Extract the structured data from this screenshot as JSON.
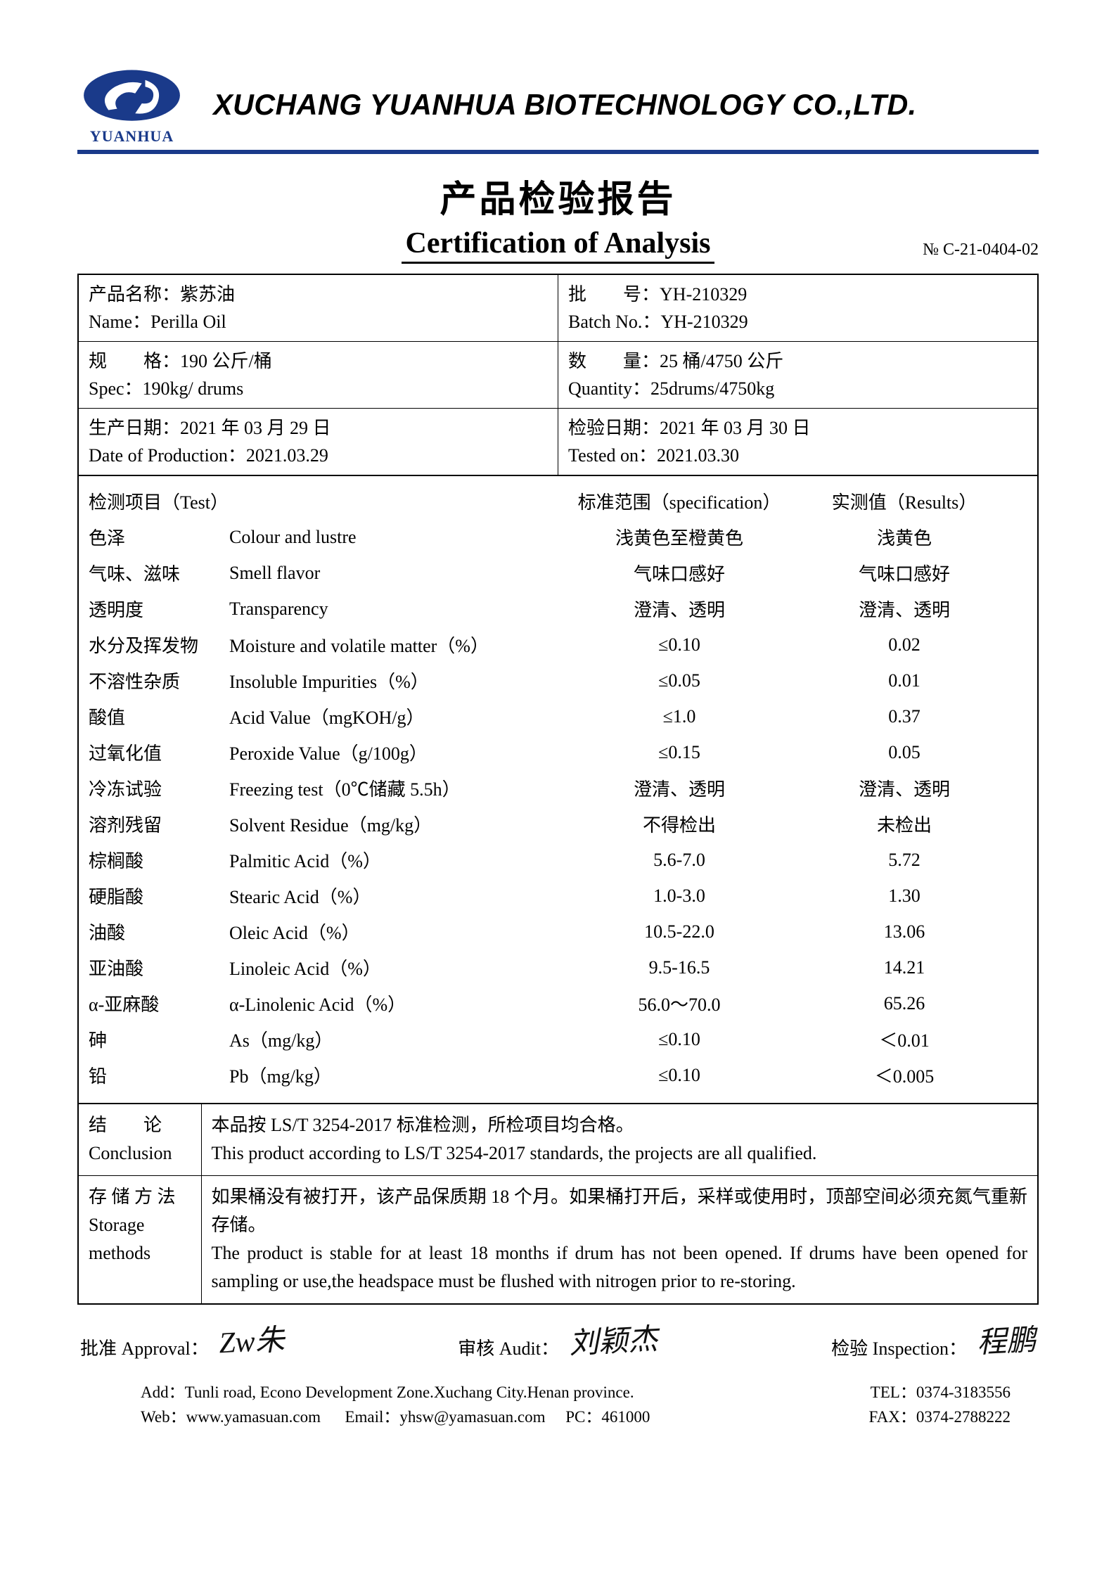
{
  "company": {
    "logo_text": "YUANHUA",
    "name_en": "XUCHANG YUANHUA BIOTECHNOLOGY CO.,LTD.",
    "logo_color": "#1a3a8a"
  },
  "titles": {
    "cn": "产品检验报告",
    "en": "Certification of Analysis",
    "doc_no_label": "№",
    "doc_no": "C-21-0404-02"
  },
  "meta": {
    "name_cn_label": "产品名称：",
    "name_cn": "紫苏油",
    "name_en_label": "Name：",
    "name_en": "Perilla Oil",
    "batch_cn_label": "批　　号：",
    "batch_cn": "YH-210329",
    "batch_en_label": "Batch No.：",
    "batch_en": "YH-210329",
    "spec_cn_label": "规　　格：",
    "spec_cn": "190 公斤/桶",
    "spec_en_label": "Spec：",
    "spec_en": "190kg/ drums",
    "qty_cn_label": "数　　量：",
    "qty_cn": "25 桶/4750 公斤",
    "qty_en_label": "Quantity：",
    "qty_en": "25drums/4750kg",
    "prod_cn_label": "生产日期：",
    "prod_cn": "2021 年 03 月 29 日",
    "prod_en_label": "Date of Production：",
    "prod_en": "2021.03.29",
    "tested_cn_label": "检验日期：",
    "tested_cn": "2021 年 03 月 30 日",
    "tested_en_label": "Tested on：",
    "tested_en": "2021.03.30"
  },
  "tests_header": {
    "c1": "检测项目（Test）",
    "c3": "标准范围（specification）",
    "c4": "实测值（Results）"
  },
  "tests": [
    {
      "cn": "色泽",
      "en": "Colour and lustre",
      "spec": "浅黄色至橙黄色",
      "result": "浅黄色"
    },
    {
      "cn": "气味、滋味",
      "en": "Smell flavor",
      "spec": "气味口感好",
      "result": "气味口感好"
    },
    {
      "cn": "透明度",
      "en": "Transparency",
      "spec": "澄清、透明",
      "result": "澄清、透明"
    },
    {
      "cn": "水分及挥发物",
      "en": "Moisture and volatile matter（%）",
      "spec": "≤0.10",
      "result": "0.02"
    },
    {
      "cn": "不溶性杂质",
      "en": "Insoluble Impurities（%）",
      "spec": "≤0.05",
      "result": "0.01"
    },
    {
      "cn": "酸值",
      "en": "Acid Value（mgKOH/g）",
      "spec": "≤1.0",
      "result": "0.37"
    },
    {
      "cn": "过氧化值",
      "en": "Peroxide Value（g/100g）",
      "spec": "≤0.15",
      "result": "0.05"
    },
    {
      "cn": "冷冻试验",
      "en": "Freezing test（0℃储藏 5.5h）",
      "spec": "澄清、透明",
      "result": "澄清、透明"
    },
    {
      "cn": "溶剂残留",
      "en": "Solvent Residue（mg/kg）",
      "spec": "不得检出",
      "result": "未检出"
    },
    {
      "cn": "棕榈酸",
      "en": "Palmitic Acid（%）",
      "spec": "5.6-7.0",
      "result": "5.72"
    },
    {
      "cn": "硬脂酸",
      "en": "Stearic Acid（%）",
      "spec": "1.0-3.0",
      "result": "1.30"
    },
    {
      "cn": "油酸",
      "en": "Oleic Acid（%）",
      "spec": "10.5-22.0",
      "result": "13.06"
    },
    {
      "cn": "亚油酸",
      "en": "Linoleic Acid（%）",
      "spec": "9.5-16.5",
      "result": "14.21"
    },
    {
      "cn": "α-亚麻酸",
      "en": "α-Linolenic Acid（%）",
      "spec": "56.0～70.0",
      "result": "65.26"
    },
    {
      "cn": "砷",
      "en": "As（mg/kg）",
      "spec": "≤0.10",
      "result": "＜0.01"
    },
    {
      "cn": "铅",
      "en": "Pb（mg/kg）",
      "spec": "≤0.10",
      "result": "＜0.005"
    }
  ],
  "conclusion": {
    "label_cn": "结　　论",
    "label_en": "Conclusion",
    "text_cn": "本品按 LS/T 3254-2017 标准检测，所检项目均合格。",
    "text_en": "This product according to LS/T 3254-2017 standards, the projects are all qualified."
  },
  "storage": {
    "label_cn": "存 储 方 法",
    "label_en": "Storage methods",
    "text_cn": "如果桶没有被打开，该产品保质期 18 个月。如果桶打开后，采样或使用时，顶部空间必须充氮气重新存储。",
    "text_en": "The product is stable for at least 18 months if drum has not been opened. If drums have been opened for sampling or use,the headspace must be flushed with nitrogen prior to re-storing."
  },
  "signatures": {
    "approval_label": "批准 Approval：",
    "approval_sig": "Zw朱",
    "audit_label": "审核 Audit：",
    "audit_sig": "刘颖杰",
    "inspection_label": "检验 Inspection：",
    "inspection_sig": "程鹏"
  },
  "footer": {
    "addr_label": "Add：",
    "addr": "Tunli road, Econo Development Zone.Xuchang City.Henan province.",
    "tel_label": "TEL：",
    "tel": "0374-3183556",
    "web_label": "Web：",
    "web": "www.yamasuan.com",
    "email_label": "Email：",
    "email": "yhsw@yamasuan.com",
    "pc_label": "PC：",
    "pc": "461000",
    "fax_label": "FAX：",
    "fax": "0374-2788222"
  }
}
